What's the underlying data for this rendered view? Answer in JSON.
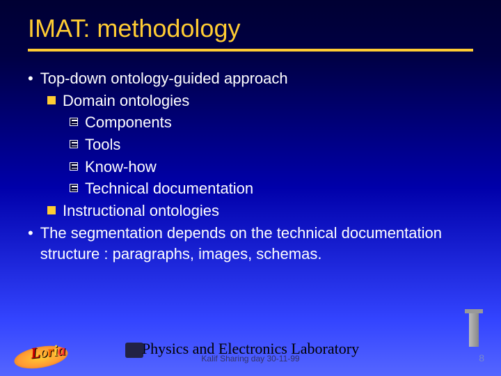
{
  "title": "IMAT: methodology",
  "title_color": "#ffcc33",
  "background_gradient": [
    "#000033",
    "#0000aa",
    "#5566ff"
  ],
  "text_color": "#ffffff",
  "bullet_square_color": "#ffcc33",
  "content": {
    "l1_a": "Top-down ontology-guided approach",
    "l2_a": "Domain ontologies",
    "l3_a": "Components",
    "l3_b": "Tools",
    "l3_c": "Know-how",
    "l3_d": "Technical documentation",
    "l2_b": "Instructional ontologies",
    "l1_b": "The segmentation depends on the technical documentation structure : paragraphs, images, schemas."
  },
  "footer": {
    "lab": "Physics and Electronics Laboratory",
    "sub": "Kalif Sharing day 30-11-99"
  },
  "logo_text": "Loria",
  "page_number": "8"
}
